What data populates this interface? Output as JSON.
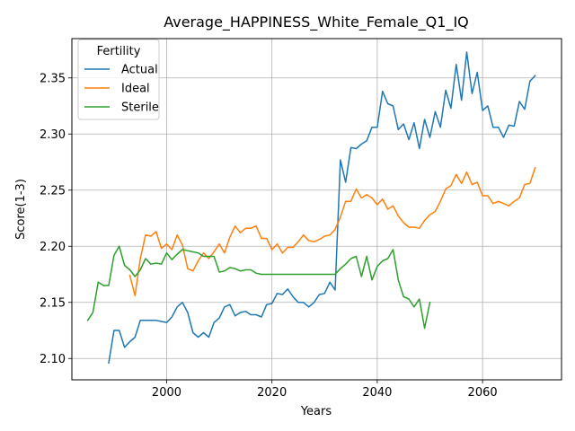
{
  "chart_data": {
    "type": "line",
    "title": "Average_HAPPINESS_White_Female_Q1_IQ",
    "xlabel": "Years",
    "ylabel": "Score(1-3)",
    "xlim": [
      1982,
      2075
    ],
    "ylim": [
      2.081,
      2.385
    ],
    "x_ticks": [
      2000,
      2020,
      2040,
      2060
    ],
    "y_ticks": [
      2.1,
      2.15,
      2.2,
      2.25,
      2.3,
      2.35
    ],
    "x_tick_labels": [
      "2000",
      "2020",
      "2040",
      "2060"
    ],
    "y_tick_labels": [
      "2.10",
      "2.15",
      "2.20",
      "2.25",
      "2.30",
      "2.35"
    ],
    "grid": true,
    "legend": {
      "title": "Fertility",
      "placement": "top-left"
    },
    "series": [
      {
        "name": "Actual",
        "color": "#1f77b4",
        "x": [
          1989,
          1990,
          1991,
          1992,
          1993,
          1994,
          1995,
          1996,
          1997,
          1998,
          1999,
          2000,
          2001,
          2002,
          2003,
          2004,
          2005,
          2006,
          2007,
          2008,
          2009,
          2010,
          2011,
          2012,
          2013,
          2014,
          2015,
          2016,
          2017,
          2018,
          2019,
          2020,
          2021,
          2022,
          2023,
          2024,
          2025,
          2026,
          2027,
          2028,
          2029,
          2030,
          2031,
          2032,
          2033,
          2034,
          2035,
          2036,
          2037,
          2038,
          2039,
          2040,
          2041,
          2042,
          2043,
          2044,
          2045,
          2046,
          2047,
          2048,
          2049,
          2050,
          2051,
          2052,
          2053,
          2054,
          2055,
          2056,
          2057,
          2058,
          2059,
          2060,
          2061,
          2062,
          2063,
          2064,
          2065,
          2066,
          2067,
          2068,
          2069,
          2070
        ],
        "values": [
          2.096,
          2.125,
          2.125,
          2.11,
          2.115,
          2.119,
          2.134,
          2.134,
          2.134,
          2.134,
          2.133,
          2.132,
          2.137,
          2.146,
          2.15,
          2.141,
          2.123,
          2.119,
          2.123,
          2.119,
          2.132,
          2.136,
          2.146,
          2.148,
          2.138,
          2.141,
          2.142,
          2.139,
          2.139,
          2.137,
          2.148,
          2.149,
          2.158,
          2.157,
          2.162,
          2.155,
          2.15,
          2.15,
          2.146,
          2.15,
          2.157,
          2.158,
          2.168,
          2.161,
          2.277,
          2.257,
          2.288,
          2.287,
          2.291,
          2.294,
          2.306,
          2.306,
          2.338,
          2.327,
          2.325,
          2.304,
          2.309,
          2.295,
          2.31,
          2.287,
          2.313,
          2.297,
          2.32,
          2.306,
          2.339,
          2.323,
          2.362,
          2.33,
          2.373,
          2.336,
          2.355,
          2.321,
          2.325,
          2.306,
          2.306,
          2.297,
          2.308,
          2.307,
          2.329,
          2.322,
          2.347,
          2.352
        ]
      },
      {
        "name": "Ideal",
        "color": "#ff7f0e",
        "x": [
          1993,
          1994,
          1995,
          1996,
          1997,
          1998,
          1999,
          2000,
          2001,
          2002,
          2003,
          2004,
          2005,
          2006,
          2007,
          2008,
          2009,
          2010,
          2011,
          2012,
          2013,
          2014,
          2015,
          2016,
          2017,
          2018,
          2019,
          2020,
          2021,
          2022,
          2023,
          2024,
          2025,
          2026,
          2027,
          2028,
          2029,
          2030,
          2031,
          2032,
          2033,
          2034,
          2035,
          2036,
          2037,
          2038,
          2039,
          2040,
          2041,
          2042,
          2043,
          2044,
          2045,
          2046,
          2047,
          2048,
          2049,
          2050,
          2051,
          2052,
          2053,
          2054,
          2055,
          2056,
          2057,
          2058,
          2059,
          2060,
          2061,
          2062,
          2063,
          2064,
          2065,
          2066,
          2067,
          2068,
          2069,
          2070
        ],
        "values": [
          2.174,
          2.156,
          2.189,
          2.21,
          2.209,
          2.213,
          2.198,
          2.202,
          2.197,
          2.21,
          2.201,
          2.18,
          2.178,
          2.187,
          2.194,
          2.189,
          2.195,
          2.202,
          2.194,
          2.208,
          2.218,
          2.212,
          2.216,
          2.216,
          2.218,
          2.207,
          2.207,
          2.197,
          2.202,
          2.194,
          2.199,
          2.199,
          2.204,
          2.21,
          2.205,
          2.204,
          2.206,
          2.209,
          2.21,
          2.215,
          2.226,
          2.24,
          2.24,
          2.251,
          2.243,
          2.246,
          2.243,
          2.237,
          2.242,
          2.233,
          2.236,
          2.227,
          2.221,
          2.217,
          2.217,
          2.216,
          2.223,
          2.228,
          2.231,
          2.24,
          2.251,
          2.254,
          2.264,
          2.256,
          2.266,
          2.255,
          2.257,
          2.245,
          2.245,
          2.238,
          2.24,
          2.238,
          2.236,
          2.24,
          2.243,
          2.255,
          2.256,
          2.27
        ]
      },
      {
        "name": "Sterile",
        "color": "#2ca02c",
        "x": [
          1985,
          1986,
          1987,
          1988,
          1989,
          1990,
          1991,
          1992,
          1993,
          1994,
          1995,
          1996,
          1997,
          1998,
          1999,
          2000,
          2001,
          2002,
          2003,
          2004,
          2005,
          2006,
          2007,
          2008,
          2009,
          2010,
          2011,
          2012,
          2013,
          2014,
          2015,
          2016,
          2017,
          2018,
          2019,
          2020,
          2021,
          2022,
          2023,
          2024,
          2025,
          2026,
          2027,
          2028,
          2029,
          2030,
          2031,
          2032,
          2033,
          2034,
          2035,
          2036,
          2037,
          2038,
          2039,
          2040,
          2041,
          2042,
          2043,
          2044,
          2045,
          2046,
          2047,
          2048,
          2049,
          2050
        ],
        "values": [
          2.134,
          2.141,
          2.168,
          2.165,
          2.165,
          2.192,
          2.2,
          2.183,
          2.179,
          2.173,
          2.179,
          2.189,
          2.184,
          2.185,
          2.184,
          2.194,
          2.188,
          2.193,
          2.197,
          2.196,
          2.195,
          2.194,
          2.191,
          2.191,
          2.191,
          2.177,
          2.178,
          2.181,
          2.18,
          2.178,
          2.179,
          2.179,
          2.176,
          2.175,
          2.175,
          2.175,
          2.175,
          2.175,
          2.175,
          2.175,
          2.175,
          2.175,
          2.175,
          2.175,
          2.175,
          2.175,
          2.175,
          2.175,
          2.18,
          2.184,
          2.189,
          2.191,
          2.173,
          2.191,
          2.17,
          2.182,
          2.187,
          2.189,
          2.197,
          2.17,
          2.155,
          2.153,
          2.146,
          2.153,
          2.127,
          2.15
        ]
      }
    ]
  }
}
